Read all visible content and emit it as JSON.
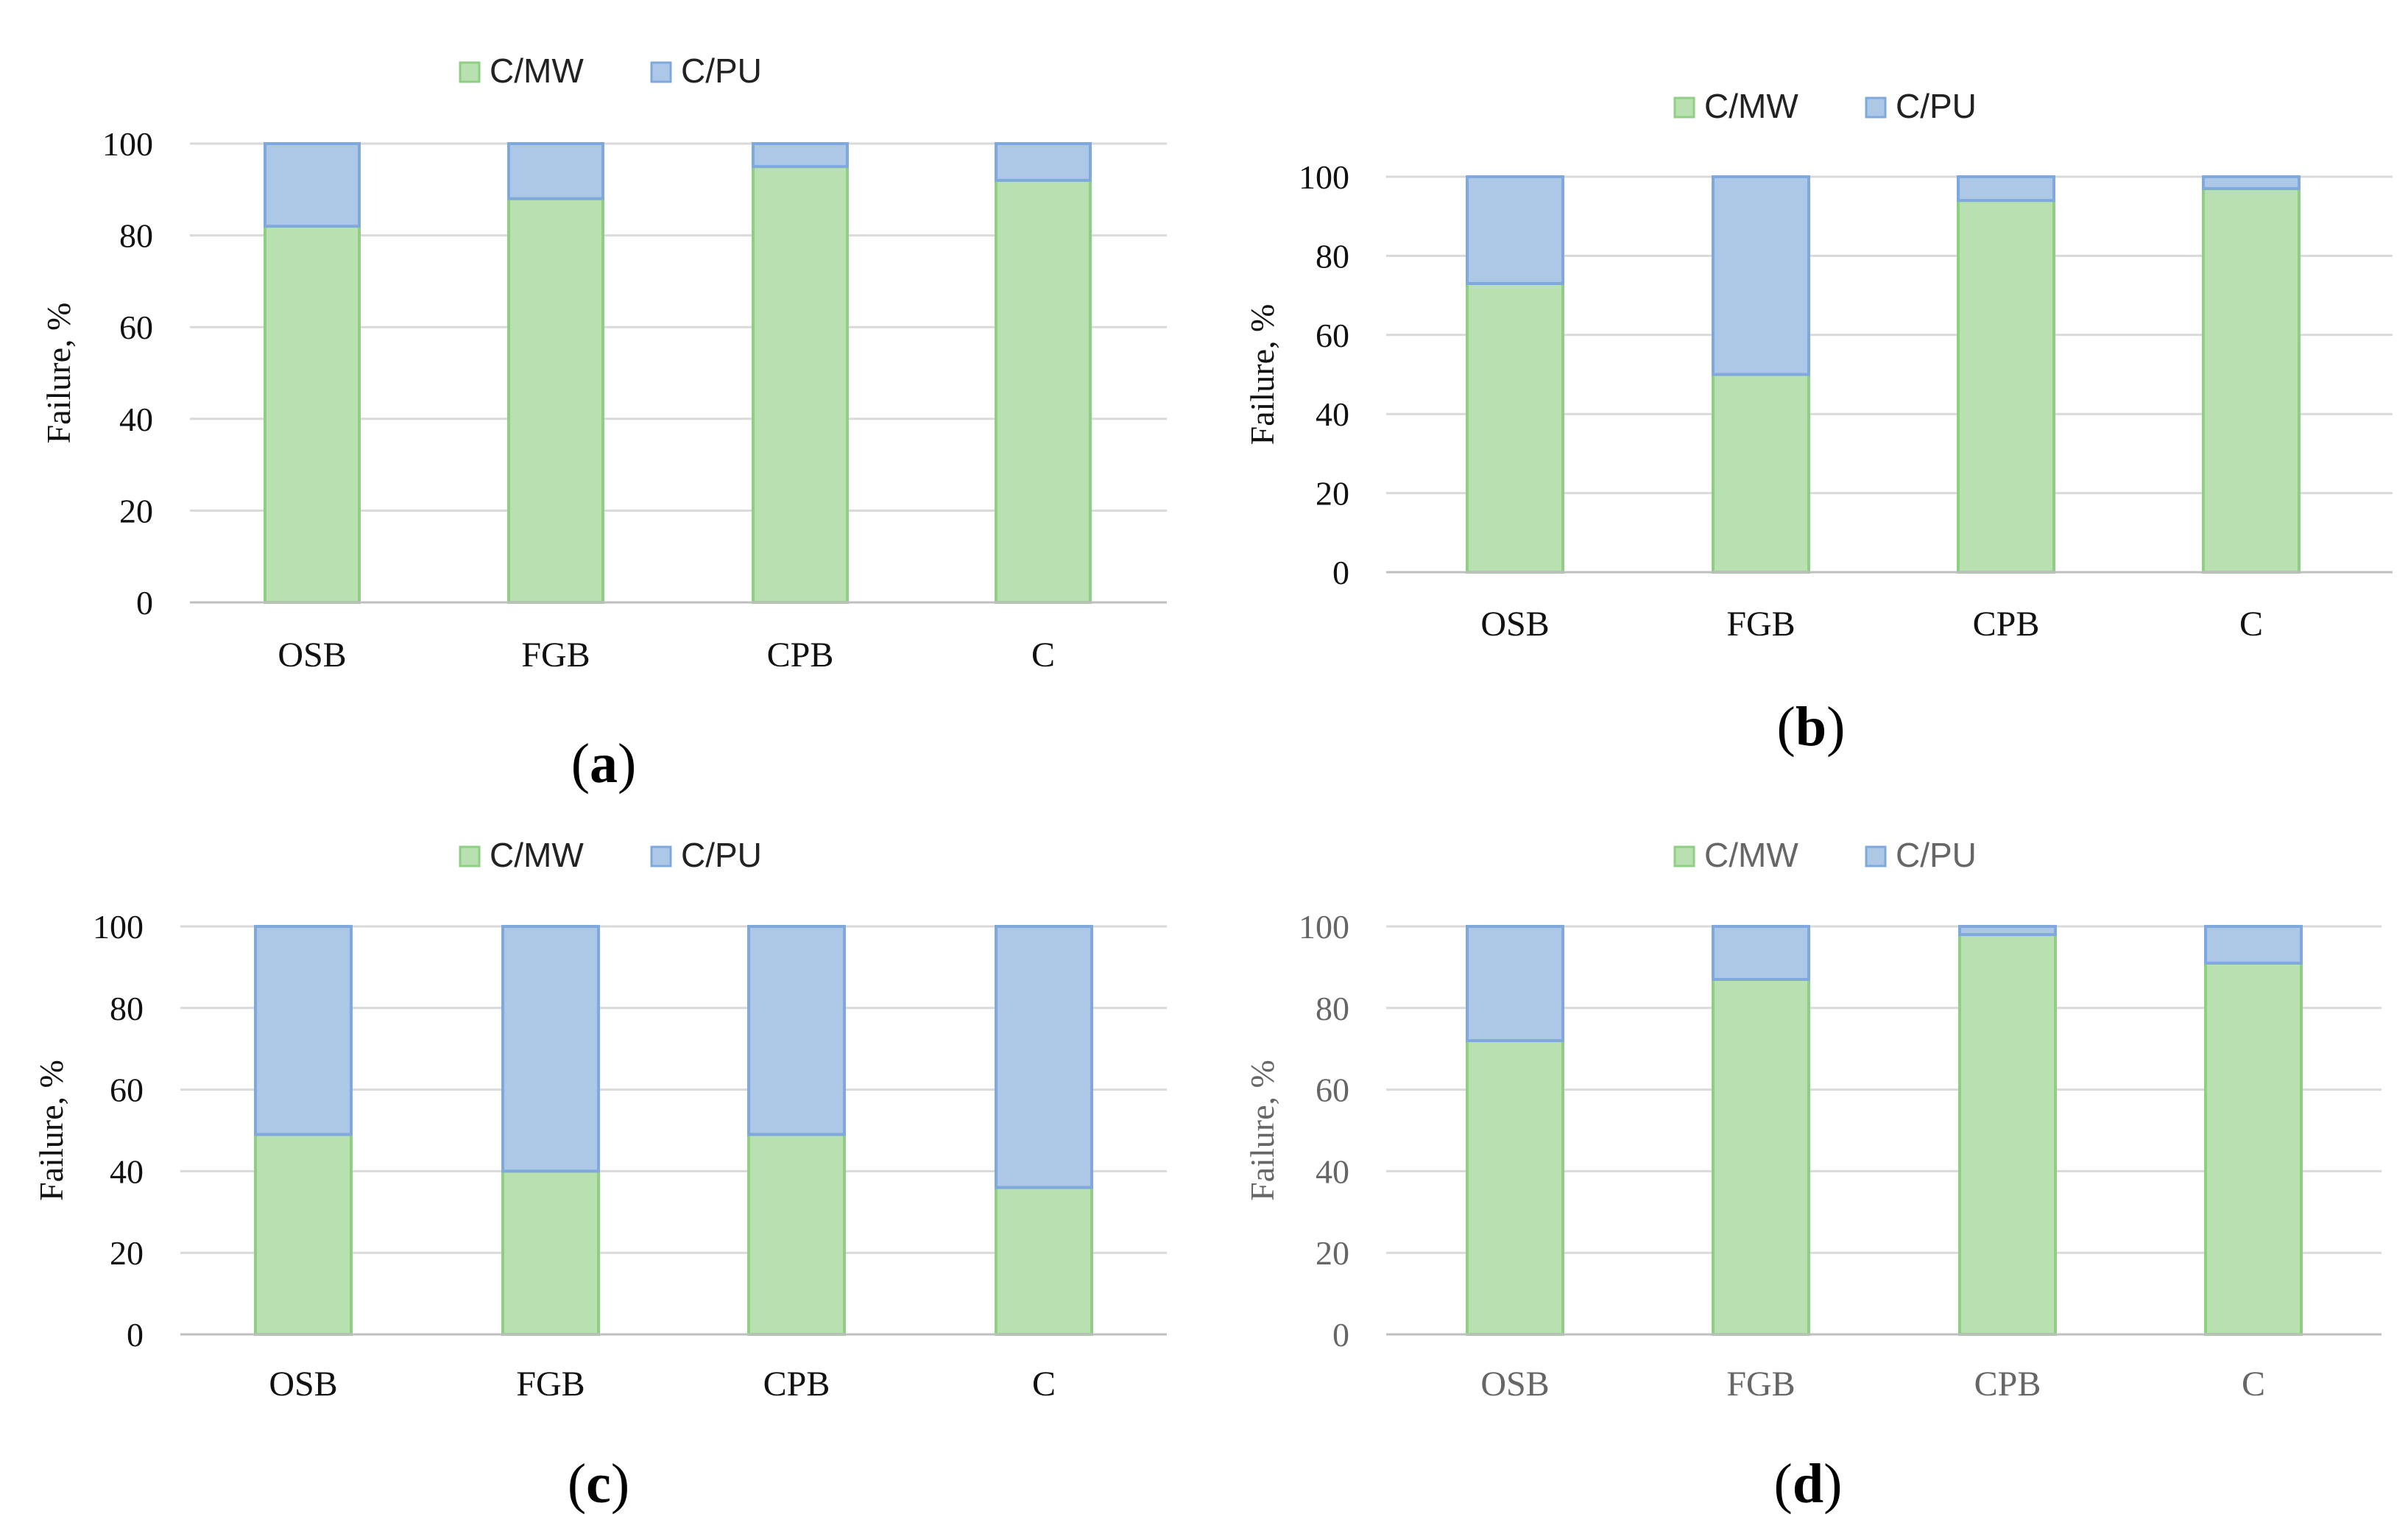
{
  "legend_labels": [
    "C/MW",
    "C/PU"
  ],
  "colors": {
    "cmw_fill": "#b8e0b0",
    "cmw_edge": "#8fcf84",
    "cpu_fill": "#adc8e6",
    "cpu_edge": "#7fa9dd"
  },
  "chart_data": [
    {
      "type": "bar",
      "stacked": true,
      "panel": "a",
      "categories": [
        "OSB",
        "FGB",
        "CPB",
        "C"
      ],
      "series": [
        {
          "name": "C/MW",
          "values": [
            82,
            88,
            95,
            92
          ]
        },
        {
          "name": "C/PU",
          "values": [
            18,
            12,
            5,
            8
          ]
        }
      ],
      "ylabel": "Failure, %",
      "ylim": [
        0,
        100
      ],
      "yticks": [
        "0",
        "20",
        "40",
        "60",
        "80",
        "100"
      ],
      "legend": "top",
      "grid": true
    },
    {
      "type": "bar",
      "stacked": true,
      "panel": "b",
      "categories": [
        "OSB",
        "FGB",
        "CPB",
        "C"
      ],
      "series": [
        {
          "name": "C/MW",
          "values": [
            73,
            50,
            94,
            97
          ]
        },
        {
          "name": "C/PU",
          "values": [
            27,
            50,
            6,
            3
          ]
        }
      ],
      "ylabel": "Failure, %",
      "ylim": [
        0,
        100
      ],
      "yticks": [
        "0",
        "20",
        "40",
        "60",
        "80",
        "100"
      ],
      "legend": "top",
      "grid": true
    },
    {
      "type": "bar",
      "stacked": true,
      "panel": "c",
      "categories": [
        "OSB",
        "FGB",
        "CPB",
        "C"
      ],
      "series": [
        {
          "name": "C/MW",
          "values": [
            49,
            40,
            49,
            36
          ]
        },
        {
          "name": "C/PU",
          "values": [
            51,
            60,
            51,
            64
          ]
        }
      ],
      "ylabel": "Failure, %",
      "ylim": [
        0,
        100
      ],
      "yticks": [
        "0",
        "20",
        "40",
        "60",
        "80",
        "100"
      ],
      "legend": "top",
      "grid": true
    },
    {
      "type": "bar",
      "stacked": true,
      "panel": "d",
      "categories": [
        "OSB",
        "FGB",
        "CPB",
        "C"
      ],
      "series": [
        {
          "name": "C/MW",
          "values": [
            72,
            87,
            98,
            91
          ]
        },
        {
          "name": "C/PU",
          "values": [
            28,
            13,
            2,
            9
          ]
        }
      ],
      "ylabel": "Failure, %",
      "ylim": [
        0,
        100
      ],
      "yticks": [
        "0",
        "20",
        "40",
        "60",
        "80",
        "100"
      ],
      "legend": "top",
      "grid": true
    }
  ],
  "panel_labels": [
    {
      "open": "(",
      "letter": "a",
      "close": ")"
    },
    {
      "open": "(",
      "letter": "b",
      "close": ")"
    },
    {
      "open": "(",
      "letter": "c",
      "close": ")"
    },
    {
      "open": "(",
      "letter": "d",
      "close": ")"
    }
  ]
}
